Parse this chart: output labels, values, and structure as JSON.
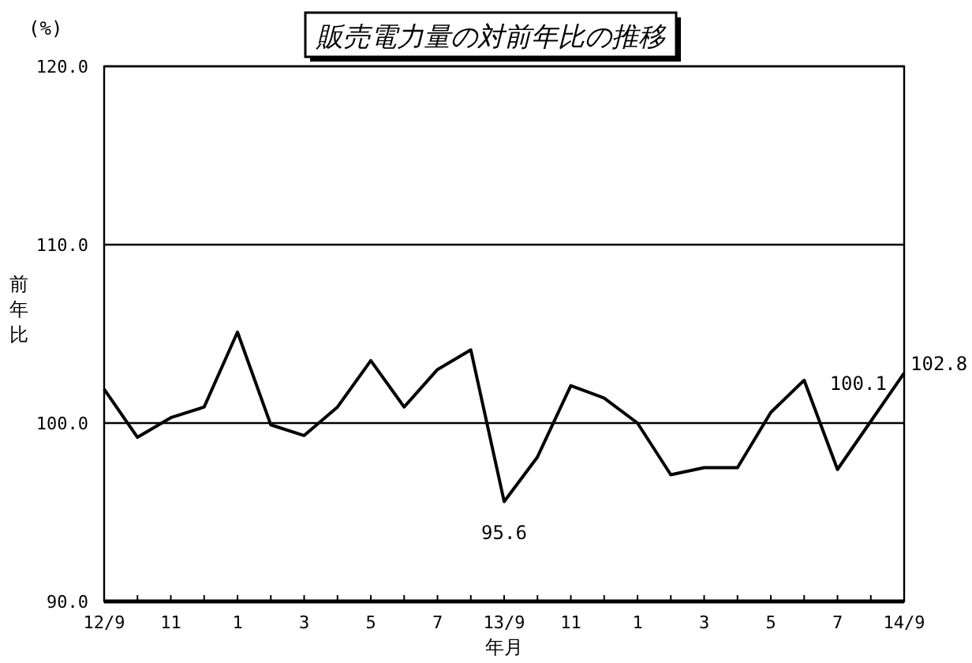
{
  "chart_data": {
    "type": "line",
    "title": "*販売電力量の対前年比の推移*",
    "xlabel": "年月",
    "ylabel": "前年比",
    "annotations": [
      "(%)"
    ],
    "categories": [
      "12/9",
      null,
      "11",
      null,
      "1",
      null,
      "3",
      null,
      "5",
      null,
      "7",
      null,
      "13/9",
      null,
      "11",
      null,
      "1",
      null,
      "3",
      null,
      "5",
      null,
      "7",
      null,
      "14/9"
    ],
    "series": [
      {
        "color": "#000000",
        "values": [
          101.9,
          99.2,
          100.3,
          100.9,
          105.1,
          99.9,
          99.3,
          100.9,
          103.5,
          100.9,
          103.0,
          104.1,
          95.6,
          98.1,
          102.1,
          101.4,
          100.0,
          97.1,
          97.5,
          97.5,
          100.6,
          102.4,
          97.4,
          100.1,
          102.8
        ],
        "value_labels": [
          null,
          null,
          null,
          null,
          null,
          null,
          null,
          null,
          null,
          null,
          null,
          null,
          "95.6",
          null,
          null,
          null,
          null,
          null,
          null,
          null,
          null,
          null,
          null,
          "100.1",
          "102.8"
        ]
      }
    ],
    "ylim": [
      90,
      120
    ],
    "yticks": [
      {
        "value": 90,
        "label": "90.0"
      },
      {
        "value": 100,
        "label": "100.0"
      },
      {
        "value": 110,
        "label": "110.0"
      },
      {
        "value": 120,
        "label": "120.0"
      }
    ],
    "grid": "y",
    "marker": "none",
    "line_style": "solid"
  }
}
